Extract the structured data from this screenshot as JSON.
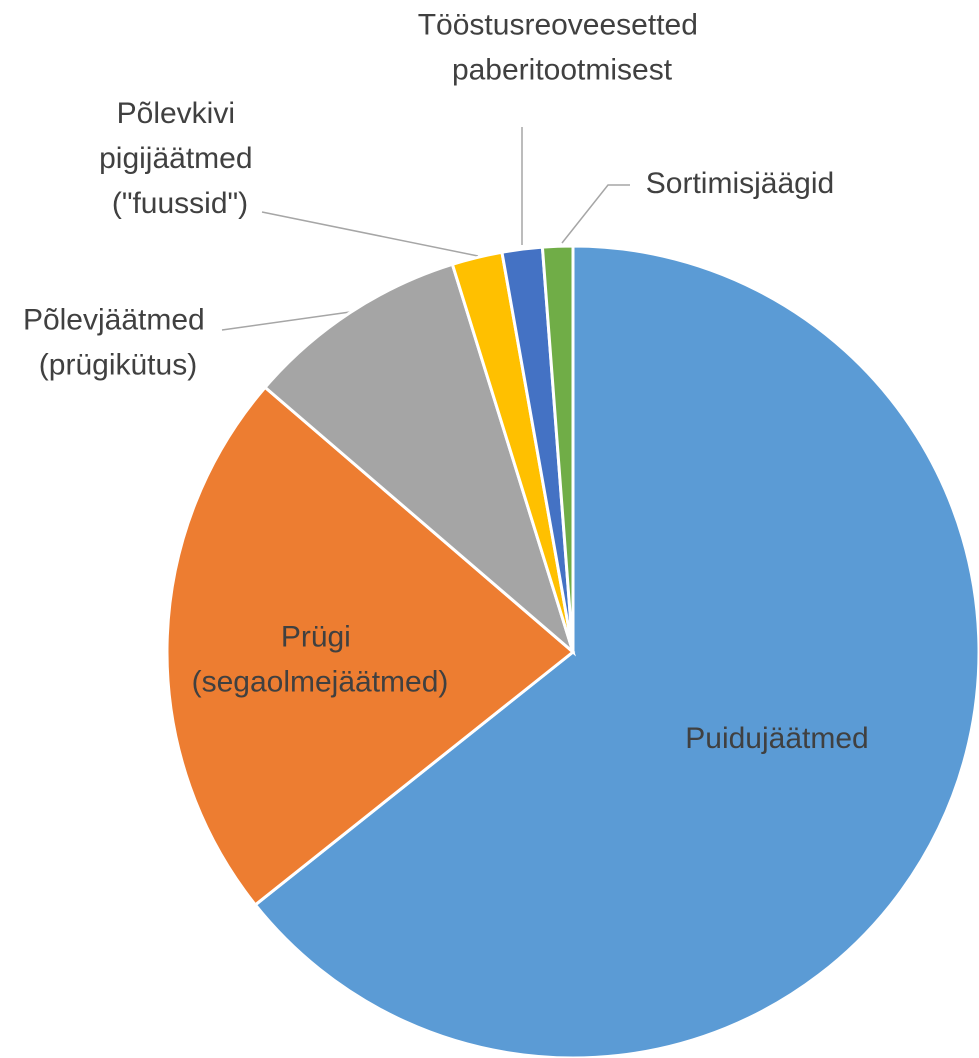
{
  "chart_data": {
    "type": "pie",
    "categories": [
      "Puidujäätmed",
      "Prügi (segaolmejäätmed)",
      "Põlevjäätmed (prügikütus)",
      "Põlevkivi pigijäätmed (\"fuussid\")",
      "Tööstusreoveesetted paberitootmisest",
      "Sortimisjäägid"
    ],
    "values": [
      64.3,
      22.0,
      8.9,
      2.0,
      1.6,
      1.2
    ],
    "colors": [
      "#5b9bd5",
      "#ed7d31",
      "#a5a5a5",
      "#ffc000",
      "#4472c4",
      "#70ad47"
    ]
  }
}
